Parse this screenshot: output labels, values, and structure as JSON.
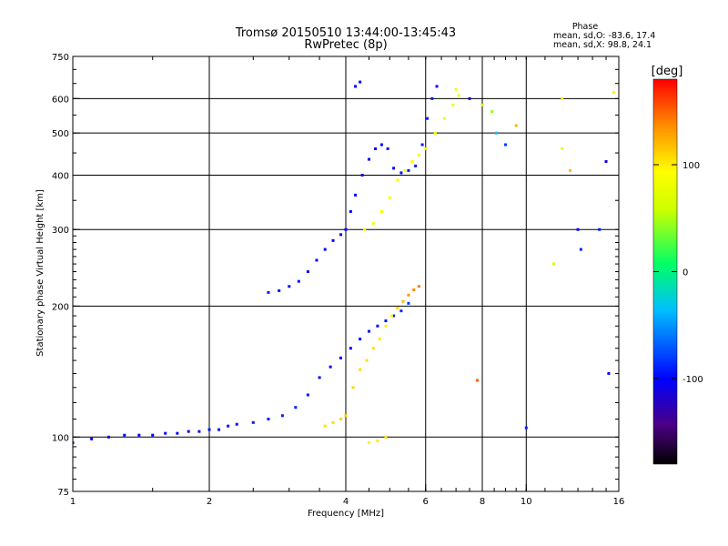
{
  "header": {
    "title_line1": "Tromsø 20150510 13:44:00-13:45:43",
    "title_line2": "RwPretec (8p)"
  },
  "phase_note": {
    "heading": "Phase",
    "line_o": "mean, sd,O: -83.6, 17.4",
    "line_x": "mean, sd,X:  98.8, 24.1"
  },
  "colorbar": {
    "unit_label": "[deg]",
    "range": [
      -180,
      180
    ],
    "tick_labels": [
      "100",
      "0",
      "-100"
    ],
    "tick_values": [
      100,
      0,
      -100
    ]
  },
  "chart_data": {
    "type": "scatter",
    "title": "Tromsø 20150510 13:44:00-13:45:43",
    "subtitle": "RwPretec (8p)",
    "xlabel": "Frequency [MHz]",
    "ylabel": "Stationary phase Virtual Height [km]",
    "x_scale": "log",
    "y_scale": "log",
    "xlim": [
      1,
      16
    ],
    "ylim": [
      75,
      750
    ],
    "x_ticks": [
      1,
      2,
      4,
      6,
      8,
      10,
      16
    ],
    "y_ticks": [
      75,
      100,
      200,
      300,
      400,
      500,
      600,
      750
    ],
    "x_gridlines": [
      2,
      4,
      6,
      8,
      10
    ],
    "y_gridlines": [
      100,
      200,
      300,
      400,
      500,
      600
    ],
    "color_encoding": "phase [deg], -180 to 180",
    "series": [
      {
        "values": [
          [
            1.0,
            97,
            -120
          ],
          [
            1.1,
            99,
            -118
          ],
          [
            1.2,
            100,
            -115
          ],
          [
            1.3,
            101,
            -115
          ],
          [
            1.4,
            101,
            -112
          ],
          [
            1.5,
            101,
            -110
          ],
          [
            1.6,
            102,
            -110
          ],
          [
            1.7,
            102,
            -108
          ],
          [
            1.8,
            103,
            -108
          ],
          [
            1.9,
            103,
            -106
          ],
          [
            2.0,
            104,
            -105
          ],
          [
            2.1,
            104,
            -105
          ],
          [
            2.2,
            106,
            -103
          ],
          [
            2.3,
            107,
            -103
          ],
          [
            2.5,
            108,
            -102
          ],
          [
            2.7,
            110,
            -100
          ],
          [
            2.9,
            112,
            -98
          ],
          [
            3.1,
            117,
            -96
          ],
          [
            3.3,
            125,
            -100
          ],
          [
            3.5,
            137,
            -105
          ],
          [
            3.7,
            145,
            -108
          ],
          [
            3.9,
            152,
            -110
          ],
          [
            4.1,
            160,
            -110
          ],
          [
            4.3,
            168,
            -108
          ],
          [
            4.5,
            175,
            -106
          ],
          [
            4.7,
            180,
            -104
          ],
          [
            4.9,
            185,
            -103
          ],
          [
            5.1,
            190,
            -100
          ],
          [
            5.3,
            195,
            -95
          ],
          [
            5.5,
            203,
            -90
          ]
        ]
      },
      {
        "values": [
          [
            2.7,
            215,
            -100
          ],
          [
            2.85,
            217,
            -100
          ],
          [
            3.0,
            222,
            -102
          ],
          [
            3.15,
            228,
            -104
          ],
          [
            3.3,
            240,
            -106
          ],
          [
            3.45,
            255,
            -108
          ],
          [
            3.6,
            270,
            -110
          ],
          [
            3.75,
            283,
            -110
          ],
          [
            3.9,
            292,
            -110
          ],
          [
            4.0,
            300,
            -110
          ],
          [
            4.1,
            330,
            -112
          ],
          [
            4.2,
            360,
            -112
          ],
          [
            4.35,
            400,
            -112
          ],
          [
            4.5,
            435,
            -112
          ],
          [
            4.65,
            460,
            -110
          ],
          [
            4.8,
            470,
            -110
          ],
          [
            4.95,
            460,
            -108
          ],
          [
            5.1,
            415,
            -108
          ],
          [
            5.3,
            405,
            -106
          ],
          [
            5.5,
            410,
            -104
          ],
          [
            5.7,
            420,
            -102
          ],
          [
            5.9,
            470,
            -100
          ],
          [
            6.05,
            540,
            -100
          ],
          [
            6.2,
            600,
            -102
          ],
          [
            6.35,
            640,
            -104
          ],
          [
            4.2,
            640,
            -110
          ],
          [
            4.3,
            655,
            -110
          ]
        ]
      },
      {
        "values": [
          [
            4.4,
            300,
            90
          ],
          [
            4.6,
            310,
            88
          ],
          [
            4.8,
            330,
            86
          ],
          [
            5.0,
            355,
            86
          ],
          [
            5.2,
            390,
            88
          ],
          [
            5.4,
            410,
            90
          ],
          [
            5.6,
            430,
            92
          ],
          [
            5.8,
            445,
            90
          ],
          [
            6.0,
            460,
            88
          ],
          [
            6.3,
            500,
            85
          ],
          [
            6.6,
            540,
            82
          ],
          [
            6.9,
            580,
            80
          ],
          [
            7.1,
            610,
            80
          ],
          [
            7.0,
            630,
            82
          ]
        ]
      },
      {
        "values": [
          [
            3.6,
            106,
            105
          ],
          [
            3.75,
            108,
            108
          ],
          [
            3.9,
            110,
            110
          ],
          [
            4.0,
            112,
            112
          ],
          [
            4.15,
            130,
            110
          ],
          [
            4.3,
            143,
            108
          ],
          [
            4.45,
            150,
            106
          ],
          [
            4.6,
            160,
            104
          ],
          [
            4.75,
            168,
            102
          ],
          [
            4.9,
            180,
            100
          ],
          [
            5.05,
            190,
            98
          ],
          [
            5.2,
            198,
            110
          ],
          [
            5.35,
            205,
            120
          ],
          [
            5.5,
            212,
            130
          ],
          [
            5.65,
            218,
            135
          ],
          [
            5.8,
            222,
            140
          ],
          [
            4.5,
            97,
            100
          ],
          [
            4.7,
            98,
            102
          ],
          [
            4.9,
            100,
            104
          ]
        ]
      },
      {
        "values": [
          [
            7.5,
            600,
            -120
          ],
          [
            8.0,
            580,
            60
          ],
          [
            8.4,
            560,
            40
          ],
          [
            8.6,
            500,
            -40
          ],
          [
            9.0,
            470,
            -90
          ],
          [
            9.5,
            520,
            120
          ],
          [
            10.0,
            105,
            -100
          ],
          [
            7.8,
            135,
            150
          ],
          [
            12.0,
            600,
            100
          ],
          [
            12.0,
            460,
            80
          ],
          [
            12.5,
            410,
            120
          ],
          [
            13.0,
            300,
            -110
          ],
          [
            13.2,
            270,
            -100
          ],
          [
            14.5,
            300,
            -100
          ],
          [
            15.0,
            430,
            -120
          ],
          [
            15.2,
            140,
            -110
          ],
          [
            15.6,
            620,
            100
          ],
          [
            11.5,
            250,
            60
          ]
        ]
      }
    ]
  }
}
